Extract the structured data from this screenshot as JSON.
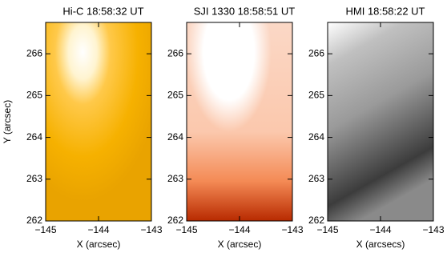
{
  "chart_data": [
    {
      "type": "image",
      "title": "Hi-C  18:58:32  UT",
      "xlabel": "X (arcsec)",
      "ylabel": "Y (arcsec)",
      "xlim": [
        -145,
        -143
      ],
      "ylim": [
        262,
        266.75
      ],
      "xticks": [
        {
          "value": -145,
          "label": "−145"
        },
        {
          "value": -144,
          "label": "−144"
        },
        {
          "value": -143,
          "label": "−143"
        }
      ],
      "yticks": [
        262,
        263,
        264,
        265,
        266
      ]
    },
    {
      "type": "image",
      "title": "SJI 1330  18:58:51  UT",
      "xlabel": "X (arcsec)",
      "xlim": [
        -145,
        -143
      ],
      "ylim": [
        262,
        266.75
      ],
      "xticks": [
        {
          "value": -145,
          "label": "−145"
        },
        {
          "value": -144,
          "label": "−144"
        },
        {
          "value": -143,
          "label": "−143"
        }
      ],
      "yticks": [
        262,
        263,
        264,
        265,
        266
      ]
    },
    {
      "type": "image",
      "title": "HMI  18:58:22  UT",
      "xlabel": "X (arcsecs)",
      "xlim": [
        -145,
        -143
      ],
      "ylim": [
        262,
        266.75
      ],
      "xticks": [
        {
          "value": -145,
          "label": "−145"
        },
        {
          "value": -144,
          "label": "−144"
        },
        {
          "value": -143,
          "label": "−143"
        }
      ],
      "yticks": [
        262,
        263,
        264,
        265,
        266
      ]
    }
  ]
}
